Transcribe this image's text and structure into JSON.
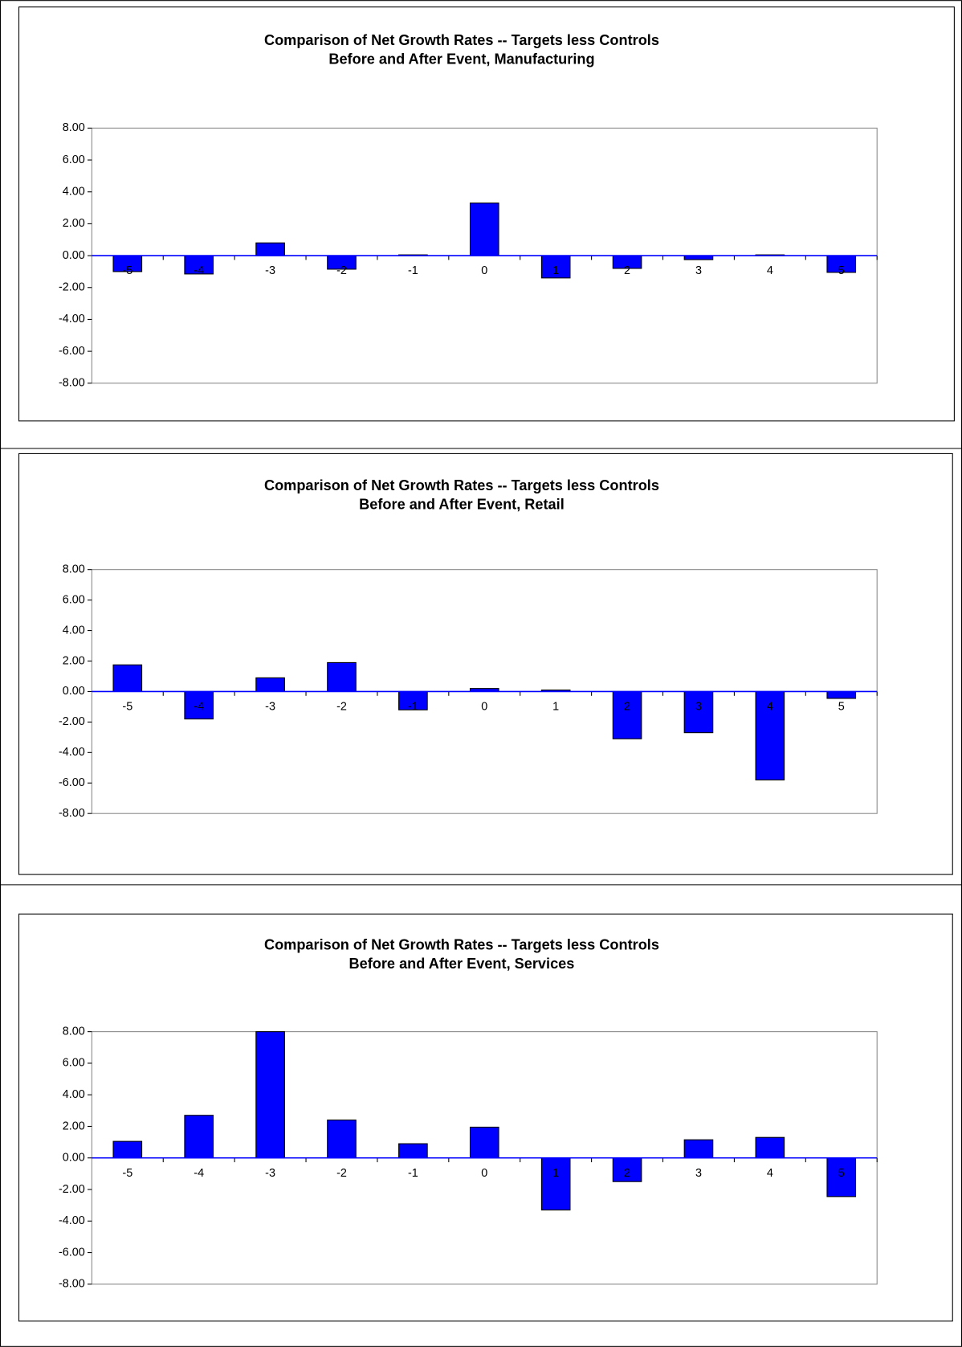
{
  "chart_data": [
    {
      "type": "bar",
      "title": "Comparison of Net Growth Rates -- Targets less Controls",
      "subtitle": "Before and After  Event, Manufacturing",
      "categories": [
        "-5",
        "-4",
        "-3",
        "-2",
        "-1",
        "0",
        "1",
        "2",
        "3",
        "4",
        "5"
      ],
      "values": [
        -1.0,
        -1.15,
        0.8,
        -0.85,
        0.05,
        3.3,
        -1.4,
        -0.8,
        -0.25,
        0.05,
        -1.05
      ],
      "color": "#0000ff",
      "ylim": [
        -8,
        8
      ],
      "yticks": [
        {
          "value": 8,
          "label": "8.00"
        },
        {
          "value": 6,
          "label": "6.00"
        },
        {
          "value": 4,
          "label": "4.00"
        },
        {
          "value": 2,
          "label": "2.00"
        },
        {
          "value": 0,
          "label": "0.00"
        },
        {
          "value": -2,
          "label": "-2.00"
        },
        {
          "value": -4,
          "label": "-4.00"
        },
        {
          "value": -6,
          "label": "-6.00"
        },
        {
          "value": -8,
          "label": "-8.00"
        }
      ],
      "grid": false
    },
    {
      "type": "bar",
      "title": "Comparison of Net Growth Rates -- Targets less Controls",
      "subtitle": "Before and After  Event, Retail",
      "categories": [
        "-5",
        "-4",
        "-3",
        "-2",
        "-1",
        "0",
        "1",
        "2",
        "3",
        "4",
        "5"
      ],
      "values": [
        1.75,
        -1.8,
        0.9,
        1.9,
        -1.2,
        0.2,
        0.1,
        -3.1,
        -2.7,
        -5.8,
        -0.45
      ],
      "color": "#0000ff",
      "ylim": [
        -8,
        8
      ],
      "yticks": [
        {
          "value": 8,
          "label": "8.00"
        },
        {
          "value": 6,
          "label": "6.00"
        },
        {
          "value": 4,
          "label": "4.00"
        },
        {
          "value": 2,
          "label": "2.00"
        },
        {
          "value": 0,
          "label": "0.00"
        },
        {
          "value": -2,
          "label": "-2.00"
        },
        {
          "value": -4,
          "label": "-4.00"
        },
        {
          "value": -6,
          "label": "-6.00"
        },
        {
          "value": -8,
          "label": "-8.00"
        }
      ],
      "grid": false
    },
    {
      "type": "bar",
      "title": "Comparison of Net Growth Rates -- Targets less Controls",
      "subtitle": "Before and After  Event, Services",
      "categories": [
        "-5",
        "-4",
        "-3",
        "-2",
        "-1",
        "0",
        "1",
        "2",
        "3",
        "4",
        "5"
      ],
      "values": [
        1.05,
        2.7,
        8.0,
        2.4,
        0.9,
        1.95,
        -3.3,
        -1.5,
        1.15,
        1.3,
        -2.45
      ],
      "color": "#0000ff",
      "ylim": [
        -8,
        8
      ],
      "yticks": [
        {
          "value": 8,
          "label": "8.00"
        },
        {
          "value": 6,
          "label": "6.00"
        },
        {
          "value": 4,
          "label": "4.00"
        },
        {
          "value": 2,
          "label": "2.00"
        },
        {
          "value": 0,
          "label": "0.00"
        },
        {
          "value": -2,
          "label": "-2.00"
        },
        {
          "value": -4,
          "label": "-4.00"
        },
        {
          "value": -6,
          "label": "-6.00"
        },
        {
          "value": -8,
          "label": "-8.00"
        }
      ],
      "grid": false
    }
  ]
}
